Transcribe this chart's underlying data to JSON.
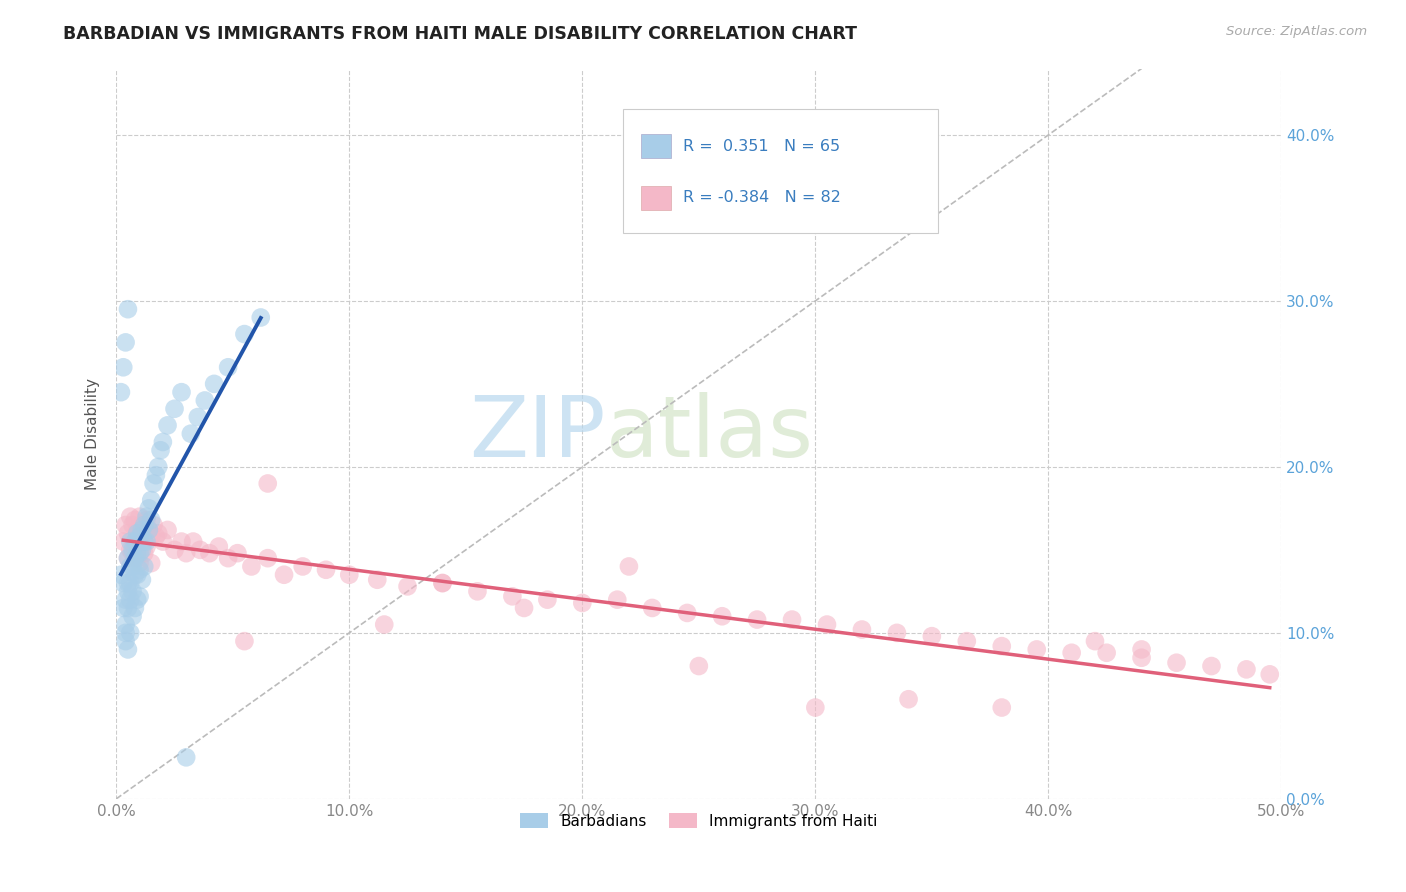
{
  "title": "BARBADIAN VS IMMIGRANTS FROM HAITI MALE DISABILITY CORRELATION CHART",
  "source_text": "Source: ZipAtlas.com",
  "ylabel": "Male Disability",
  "xlim": [
    0.0,
    0.5
  ],
  "ylim": [
    0.0,
    0.44
  ],
  "xticks": [
    0.0,
    0.1,
    0.2,
    0.3,
    0.4,
    0.5
  ],
  "yticks": [
    0.0,
    0.1,
    0.2,
    0.3,
    0.4
  ],
  "R_blue": 0.351,
  "N_blue": 65,
  "R_pink": -0.384,
  "N_pink": 82,
  "blue_color": "#a8cde8",
  "pink_color": "#f4b8c8",
  "blue_line_color": "#2255aa",
  "pink_line_color": "#e0607a",
  "watermark_zip": "ZIP",
  "watermark_atlas": "atlas",
  "legend_entries": [
    "Barbadians",
    "Immigrants from Haiti"
  ],
  "blue_scatter_x": [
    0.002,
    0.003,
    0.003,
    0.004,
    0.004,
    0.004,
    0.004,
    0.005,
    0.005,
    0.005,
    0.005,
    0.005,
    0.006,
    0.006,
    0.006,
    0.006,
    0.006,
    0.007,
    0.007,
    0.007,
    0.007,
    0.008,
    0.008,
    0.008,
    0.008,
    0.009,
    0.009,
    0.009,
    0.009,
    0.01,
    0.01,
    0.01,
    0.01,
    0.011,
    0.011,
    0.011,
    0.012,
    0.012,
    0.012,
    0.013,
    0.013,
    0.014,
    0.014,
    0.015,
    0.015,
    0.016,
    0.017,
    0.018,
    0.019,
    0.02,
    0.022,
    0.025,
    0.028,
    0.03,
    0.032,
    0.035,
    0.038,
    0.042,
    0.048,
    0.055,
    0.062,
    0.002,
    0.003,
    0.004,
    0.005
  ],
  "blue_scatter_y": [
    0.135,
    0.13,
    0.115,
    0.12,
    0.105,
    0.1,
    0.095,
    0.145,
    0.13,
    0.125,
    0.115,
    0.09,
    0.155,
    0.14,
    0.13,
    0.12,
    0.1,
    0.15,
    0.14,
    0.125,
    0.11,
    0.155,
    0.145,
    0.135,
    0.115,
    0.16,
    0.148,
    0.135,
    0.12,
    0.158,
    0.148,
    0.138,
    0.122,
    0.162,
    0.15,
    0.132,
    0.165,
    0.155,
    0.14,
    0.17,
    0.155,
    0.175,
    0.162,
    0.18,
    0.168,
    0.19,
    0.195,
    0.2,
    0.21,
    0.215,
    0.225,
    0.235,
    0.245,
    0.025,
    0.22,
    0.23,
    0.24,
    0.25,
    0.26,
    0.28,
    0.29,
    0.245,
    0.26,
    0.275,
    0.295
  ],
  "pink_scatter_x": [
    0.003,
    0.004,
    0.005,
    0.005,
    0.006,
    0.006,
    0.007,
    0.007,
    0.008,
    0.008,
    0.009,
    0.009,
    0.01,
    0.01,
    0.01,
    0.011,
    0.012,
    0.012,
    0.013,
    0.013,
    0.014,
    0.015,
    0.015,
    0.016,
    0.017,
    0.018,
    0.02,
    0.022,
    0.025,
    0.028,
    0.03,
    0.033,
    0.036,
    0.04,
    0.044,
    0.048,
    0.052,
    0.058,
    0.065,
    0.072,
    0.08,
    0.09,
    0.1,
    0.112,
    0.125,
    0.14,
    0.155,
    0.17,
    0.185,
    0.2,
    0.215,
    0.23,
    0.245,
    0.26,
    0.275,
    0.29,
    0.305,
    0.32,
    0.335,
    0.35,
    0.365,
    0.38,
    0.395,
    0.41,
    0.425,
    0.44,
    0.455,
    0.47,
    0.485,
    0.495,
    0.065,
    0.14,
    0.22,
    0.3,
    0.38,
    0.44,
    0.055,
    0.115,
    0.175,
    0.25,
    0.34,
    0.42
  ],
  "pink_scatter_y": [
    0.155,
    0.165,
    0.16,
    0.145,
    0.17,
    0.15,
    0.165,
    0.148,
    0.168,
    0.152,
    0.162,
    0.145,
    0.17,
    0.158,
    0.142,
    0.165,
    0.16,
    0.148,
    0.168,
    0.152,
    0.162,
    0.158,
    0.142,
    0.165,
    0.158,
    0.16,
    0.155,
    0.162,
    0.15,
    0.155,
    0.148,
    0.155,
    0.15,
    0.148,
    0.152,
    0.145,
    0.148,
    0.14,
    0.145,
    0.135,
    0.14,
    0.138,
    0.135,
    0.132,
    0.128,
    0.13,
    0.125,
    0.122,
    0.12,
    0.118,
    0.12,
    0.115,
    0.112,
    0.11,
    0.108,
    0.108,
    0.105,
    0.102,
    0.1,
    0.098,
    0.095,
    0.092,
    0.09,
    0.088,
    0.088,
    0.085,
    0.082,
    0.08,
    0.078,
    0.075,
    0.19,
    0.13,
    0.14,
    0.055,
    0.055,
    0.09,
    0.095,
    0.105,
    0.115,
    0.08,
    0.06,
    0.095
  ]
}
